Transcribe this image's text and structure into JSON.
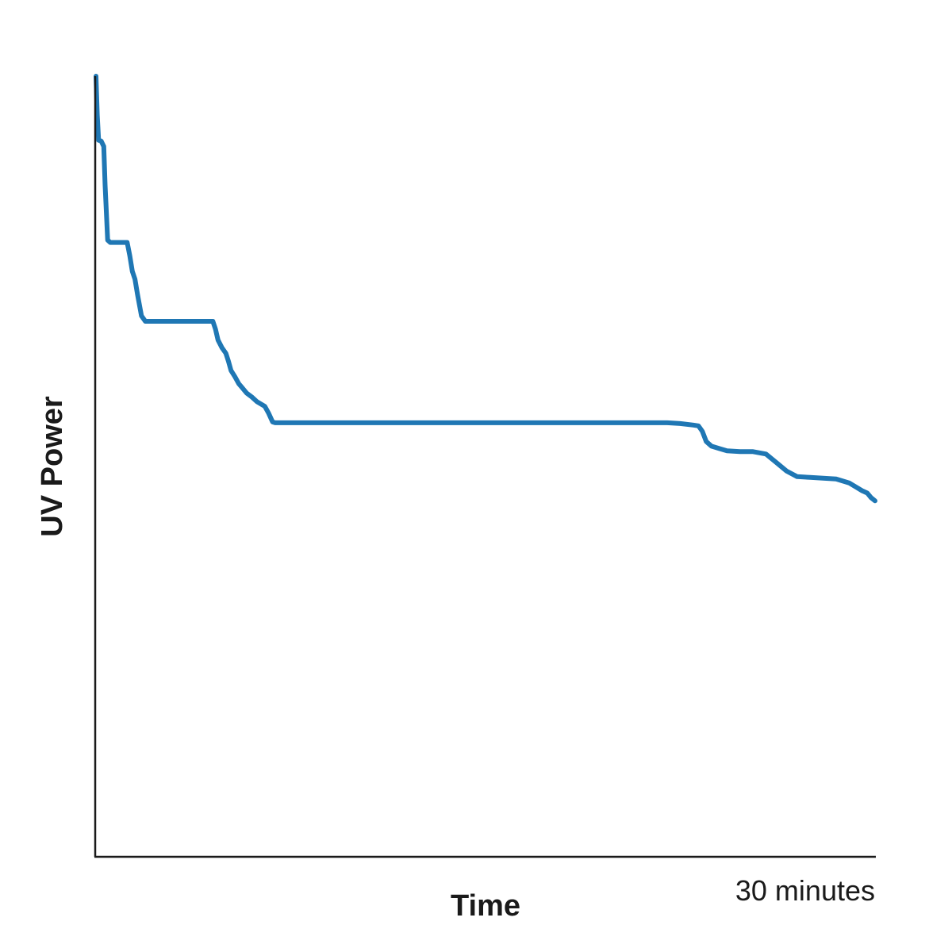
{
  "chart_data": {
    "type": "line",
    "title": "",
    "xlabel": "Time",
    "ylabel": "UV Power",
    "x_tick_label": "30 minutes",
    "xlim": [
      0,
      30
    ],
    "ylim": [
      0,
      100
    ],
    "grid": false,
    "colors": {
      "series": "#1f77b4",
      "axis": "#1a1a1a"
    },
    "series": [
      {
        "x": [
          0,
          0.05,
          0.1,
          0.2,
          0.3,
          0.35,
          0.45,
          0.55,
          0.6,
          0.8,
          1.0,
          1.2,
          1.3,
          1.4,
          1.5,
          1.6,
          1.75,
          1.9,
          2.2,
          2.6,
          3.4,
          4.4,
          4.5,
          4.6,
          4.7,
          4.85,
          5.0,
          5.1,
          5.2,
          5.35,
          5.5,
          5.6,
          5.8,
          6.0,
          6.2,
          6.5,
          6.65,
          6.8,
          6.9,
          7.1,
          7.3,
          7.5,
          8.0,
          10.0,
          15.0,
          20.0,
          22.0,
          22.5,
          23.0,
          23.2,
          23.35,
          23.5,
          23.7,
          23.8,
          24.0,
          24.3,
          24.8,
          25.3,
          25.8,
          26.2,
          26.6,
          27.0,
          27.5,
          28.0,
          28.5,
          29.0,
          29.3,
          29.5,
          29.7,
          29.85,
          30.0
        ],
        "y": [
          100,
          95,
          91.8,
          91.7,
          91.0,
          86.0,
          79.0,
          78.7,
          78.7,
          78.7,
          78.7,
          78.7,
          77.0,
          75.0,
          74.0,
          72.0,
          69.3,
          68.6,
          68.6,
          68.6,
          68.6,
          68.6,
          68.6,
          67.6,
          66.2,
          65.2,
          64.5,
          63.5,
          62.3,
          61.5,
          60.6,
          60.2,
          59.4,
          58.9,
          58.3,
          57.7,
          56.8,
          55.7,
          55.6,
          55.6,
          55.6,
          55.6,
          55.6,
          55.6,
          55.6,
          55.6,
          55.6,
          55.5,
          55.3,
          55.2,
          54.5,
          53.2,
          52.6,
          52.5,
          52.3,
          52.0,
          51.9,
          51.9,
          51.6,
          50.5,
          49.4,
          48.7,
          48.6,
          48.5,
          48.4,
          47.9,
          47.3,
          46.9,
          46.6,
          46.0,
          45.6
        ]
      }
    ]
  }
}
